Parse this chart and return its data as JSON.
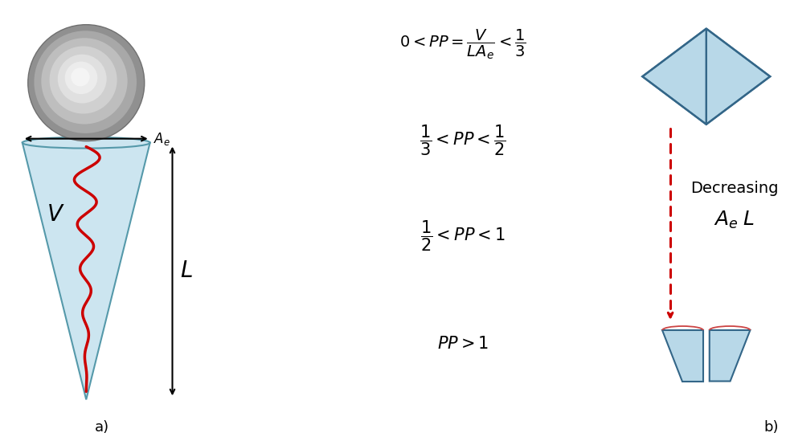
{
  "bg_color": "#ffffff",
  "cone_color": "#cce5f0",
  "cone_edge_color": "#5599aa",
  "red_wave_color": "#cc0000",
  "dashed_arrow_color": "#cc0000",
  "diamond_color": "#b8d8e8",
  "trapezoid_color": "#b8d8e8",
  "shape_edge_color": "#336688",
  "label_a": "a)",
  "label_b": "b)",
  "label_Ae": "$A_e$",
  "label_V": "$V$",
  "label_L": "$L$",
  "eq1": "$0< PP = \\dfrac{V}{LA_e} < \\dfrac{1}{3}$",
  "eq2": "$\\dfrac{1}{3} < PP < \\dfrac{1}{2}$",
  "eq3": "$\\dfrac{1}{2} < PP < 1$",
  "eq4": "$PP > 1$",
  "dec_label": "Decreasing",
  "dec_sublabel": "$A_e\\;L$",
  "fontsize_eq": 14,
  "fontsize_label": 13,
  "fontsize_dec": 13
}
